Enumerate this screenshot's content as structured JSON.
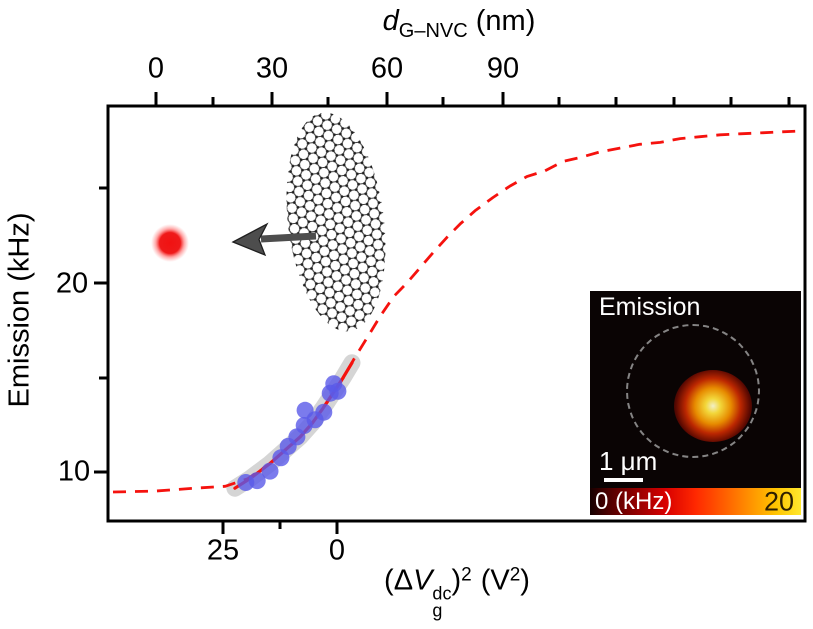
{
  "figure": {
    "axis_top": {
      "title_var": "d",
      "title_sub": "G–NVC",
      "title_unit": "(nm)",
      "ticks": [
        "0",
        "30",
        "60",
        "90"
      ]
    },
    "axis_left": {
      "title": "Emission (kHz)",
      "ticks": [
        "20",
        "10"
      ]
    },
    "axis_bottom": {
      "ticks": [
        "25",
        "0"
      ],
      "title": {
        "pre": "(Δ",
        "var": "V",
        "sup": "dc",
        "sub": "g",
        "close": ")",
        "sq": "2",
        "unit": "(V",
        "usq": "2",
        "uclose": ")"
      }
    },
    "inset": {
      "title": "Emission",
      "scale_bar": "1 μm",
      "cbar_min": "0 (kHz)",
      "cbar_max": "20"
    },
    "colors": {
      "curve_red": "#f5120e",
      "points_blue": "#5a5ae8",
      "band_gray": "#b3b3b3",
      "nv_dot_red": "#f01414"
    }
  },
  "chart_data": {
    "type": "line",
    "title": "",
    "axes": {
      "top_x": {
        "label": "d_G–NVC (nm)",
        "ticks": [
          0,
          30,
          60,
          90
        ],
        "minor_step": 15,
        "range_approx": [
          -12.5,
          169
        ]
      },
      "bottom_x": {
        "label": "(ΔV_g^dc)^2 (V^2)",
        "ticks": [
          25,
          0
        ],
        "minor_tick": 12.5,
        "direction": "decreasing-to-right"
      },
      "y": {
        "label": "Emission (kHz)",
        "ticks": [
          10,
          20
        ],
        "minor_step": 5,
        "range_approx": [
          7.5,
          29.3
        ]
      }
    },
    "legend": "none",
    "grid": false,
    "series": [
      {
        "name": "theory_curve_dashed",
        "style": "red-dashed",
        "x_axis": "top_x",
        "d_nm": [
          -11.2,
          -0.3,
          10.1,
          18.0,
          23.9,
          29.7,
          33.6,
          37.5,
          40.6,
          43.5,
          46.1,
          48.7,
          51.8,
          55.2,
          58.5,
          61.9,
          65.3,
          68.7,
          72.1,
          75.7,
          79.1,
          83.0,
          87.7,
          92.1,
          96.5,
          101.2,
          105.9,
          110.3,
          115.5,
          120.7,
          125.9,
          131.2,
          136.4,
          141.6,
          146.8,
          152.0,
          157.2,
          162.4,
          167.6
        ],
        "emission_khz": [
          9.0,
          9.05,
          9.2,
          9.3,
          9.7,
          10.5,
          11.2,
          11.9,
          12.6,
          13.4,
          14.2,
          15.0,
          16.1,
          17.2,
          18.3,
          19.3,
          20.0,
          20.8,
          21.6,
          22.4,
          23.1,
          23.8,
          24.5,
          25.1,
          25.6,
          25.9,
          26.4,
          26.6,
          26.9,
          27.1,
          27.3,
          27.4,
          27.6,
          27.7,
          27.8,
          27.85,
          27.9,
          27.95,
          28.0
        ]
      },
      {
        "name": "fit_solid_with_band",
        "style": "red-solid-gray-confidence-band",
        "x_axis": "bottom_x",
        "dv2_v2": [
          22.4,
          19.1,
          14.7,
          11.4,
          8.1,
          5.5,
          3.1,
          0.9,
          -1.3,
          -3.3
        ],
        "emission_khz": [
          9.2,
          9.7,
          10.5,
          11.2,
          11.9,
          12.6,
          13.4,
          14.2,
          15.0,
          15.8
        ]
      },
      {
        "name": "measured_points",
        "style": "blue-circles",
        "x_axis": "bottom_x",
        "dv2_v2": [
          20.0,
          17.5,
          14.7,
          12.3,
          10.7,
          8.8,
          7.2,
          7.0,
          4.8,
          2.9,
          1.5,
          0.7,
          -0.2
        ],
        "emission_khz": [
          9.5,
          9.6,
          10.1,
          10.8,
          11.4,
          11.9,
          12.5,
          13.3,
          12.8,
          13.2,
          14.2,
          14.7,
          14.3
        ]
      }
    ],
    "annotations": [
      {
        "name": "nv_center_dot",
        "desc": "red fluorescent NV centre",
        "approx_pos": {
          "d_nm": 4,
          "emission_khz": 22
        }
      },
      {
        "name": "graphene_sheet",
        "desc": "suspended graphene membrane illustration"
      },
      {
        "name": "arrow",
        "desc": "arrow from graphene toward NV centre"
      }
    ],
    "inset": {
      "type": "heatmap",
      "title": "Emission",
      "scale_bar": "1 μm",
      "colorbar": {
        "min": 0,
        "max": 20,
        "units": "kHz"
      }
    }
  }
}
